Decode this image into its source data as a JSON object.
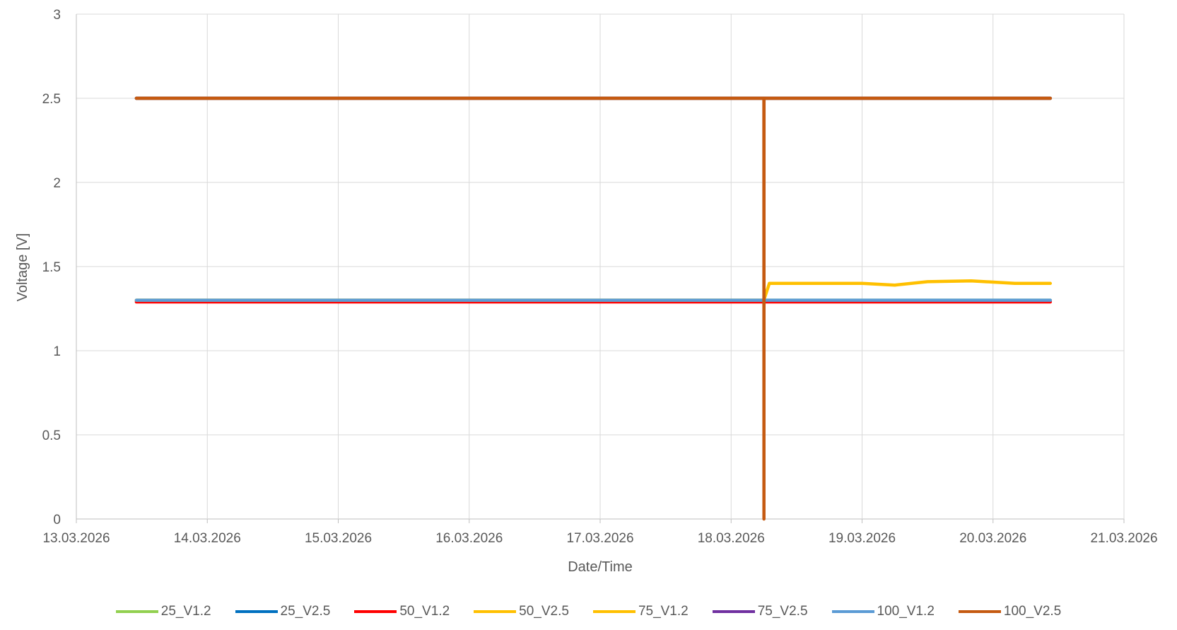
{
  "chart_data": {
    "type": "line",
    "title": "",
    "xlabel": "Date/Time",
    "ylabel": "Voltage [V]",
    "ylim": [
      0,
      3
    ],
    "xlim": [
      "13.03.2026",
      "21.03.2026"
    ],
    "y_ticks": [
      "0",
      "0.5",
      "1",
      "1.5",
      "2",
      "2.5",
      "3"
    ],
    "x_ticks": [
      "13.03.2026",
      "14.03.2026",
      "15.03.2026",
      "16.03.2026",
      "17.03.2026",
      "18.03.2026",
      "19.03.2026",
      "20.03.2026",
      "21.03.2026"
    ],
    "grid": true,
    "legend_position": "bottom",
    "series": [
      {
        "name": "25_V1.2",
        "color": "#92D050",
        "points": [
          [
            "2026-03-13 11:00",
            1.3
          ],
          [
            "2026-03-20 10:30",
            1.3
          ]
        ]
      },
      {
        "name": "25_V2.5",
        "color": "#0070C0",
        "points": [
          [
            "2026-03-13 11:00",
            2.5
          ],
          [
            "2026-03-20 10:30",
            2.5
          ]
        ]
      },
      {
        "name": "50_V1.2",
        "color": "#FF0000",
        "points": [
          [
            "2026-03-13 11:00",
            1.29
          ],
          [
            "2026-03-20 10:30",
            1.29
          ]
        ]
      },
      {
        "name": "50_V2.5",
        "color": "#FFC000",
        "points": [
          [
            "2026-03-13 11:00",
            2.5
          ],
          [
            "2026-03-20 10:30",
            2.5
          ]
        ]
      },
      {
        "name": "75_V1.2",
        "color": "#FFC000",
        "points": [
          [
            "2026-03-13 11:00",
            1.3
          ],
          [
            "2026-03-18 06:00",
            1.3
          ],
          [
            "2026-03-18 07:00",
            1.4
          ],
          [
            "2026-03-19 00:00",
            1.4
          ],
          [
            "2026-03-19 06:00",
            1.39
          ],
          [
            "2026-03-19 12:00",
            1.41
          ],
          [
            "2026-03-19 20:00",
            1.415
          ],
          [
            "2026-03-20 04:00",
            1.4
          ],
          [
            "2026-03-20 10:30",
            1.4
          ]
        ]
      },
      {
        "name": "75_V2.5",
        "color": "#7030A0",
        "points": [
          [
            "2026-03-13 11:00",
            2.5
          ],
          [
            "2026-03-20 10:30",
            2.5
          ]
        ]
      },
      {
        "name": "100_V1.2",
        "color": "#5B9BD5",
        "points": [
          [
            "2026-03-13 11:00",
            1.3
          ],
          [
            "2026-03-20 10:30",
            1.3
          ]
        ]
      },
      {
        "name": "100_V2.5",
        "color": "#C55A11",
        "points": [
          [
            "2026-03-13 11:00",
            2.5
          ],
          [
            "2026-03-18 06:00",
            2.5
          ],
          [
            "2026-03-18 06:01",
            0.0
          ],
          [
            "2026-03-18 06:02",
            2.5
          ],
          [
            "2026-03-20 10:30",
            2.5
          ]
        ]
      }
    ]
  }
}
